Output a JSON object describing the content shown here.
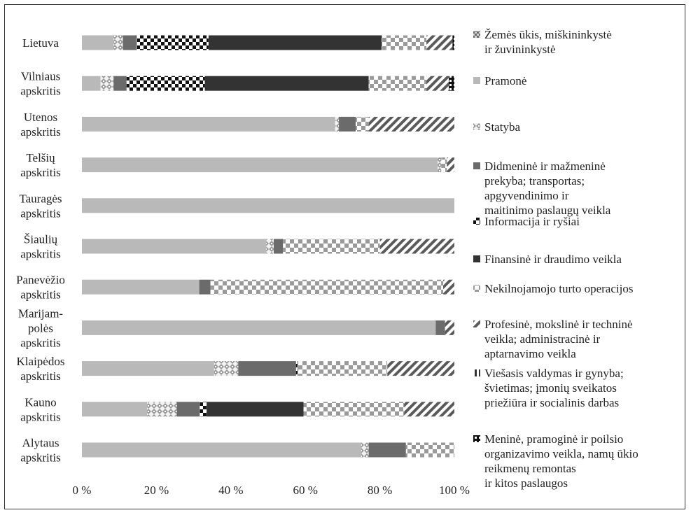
{
  "chart_data": {
    "type": "bar",
    "orientation": "horizontal",
    "stacked": true,
    "percent_stacked": true,
    "categories": [
      "Lietuva",
      "Vilniaus apskritis",
      "Utenos apskritis",
      "Telšių apskritis",
      "Tauragės apskritis",
      "Šiaulių apskritis",
      "Panevėžio apskritis",
      "Marijam-polės apskritis",
      "Klaipėdos apskritis",
      "Kauno apskritis",
      "Alytaus apskritis"
    ],
    "category_lines": [
      [
        "Lietuva"
      ],
      [
        "Vilniaus",
        "apskritis"
      ],
      [
        "Utenos",
        "apskritis"
      ],
      [
        "Telšių",
        "apskritis"
      ],
      [
        "Tauragės",
        "apskritis"
      ],
      [
        "Šiaulių",
        "apskritis"
      ],
      [
        "Panevėžio",
        "apskritis"
      ],
      [
        "Marijam-",
        "polės",
        "apskritis"
      ],
      [
        "Klaipėdos",
        "apskritis"
      ],
      [
        "Kauno",
        "apskritis"
      ],
      [
        "Alytaus",
        "apskritis"
      ]
    ],
    "series": [
      {
        "name": "Žemės ūkis, miškininkystė ir žuvininkystė",
        "name_lines": [
          "Žemės ūkis, miškininkystė",
          "ir žuvininkystė"
        ],
        "pattern": "checker-dark",
        "values": [
          0,
          0,
          0,
          0,
          0,
          0,
          0,
          0,
          0,
          0,
          0
        ]
      },
      {
        "name": "Pramonė",
        "name_lines": [
          "Pramonė"
        ],
        "pattern": "solid-light",
        "values": [
          8.5,
          5,
          68,
          95.5,
          100,
          49.5,
          31.5,
          95,
          35.5,
          17.5,
          75
        ]
      },
      {
        "name": "Statyba",
        "name_lines": [
          "Statyba"
        ],
        "pattern": "diamond",
        "values": [
          2.5,
          3.5,
          1,
          1,
          0,
          2,
          0,
          0,
          6.5,
          8,
          2
        ]
      },
      {
        "name": "Didmeninė ir mažmeninė prekyba; transportas; apgyvendinimo ir maitinimo paslaugų veikla",
        "name_lines": [
          "Didmeninė ir mažmeninė",
          "prekyba; transportas;",
          "apgyvendinimo ir",
          "maitinimo paslaugų veikla"
        ],
        "pattern": "solid-mid",
        "values": [
          3.5,
          3.5,
          4.5,
          0,
          0,
          2.5,
          3,
          2.5,
          15.5,
          6,
          10
        ]
      },
      {
        "name": "Informacija ir ryšiai",
        "name_lines": [
          "Informacija ir ryšiai"
        ],
        "pattern": "big-checker",
        "values": [
          19.5,
          21,
          0,
          0,
          0,
          0,
          0,
          0,
          0.5,
          2,
          0
        ]
      },
      {
        "name": "Finansinė ir draudimo veikla",
        "name_lines": [
          "Finansinė ir draudimo veikla"
        ],
        "pattern": "solid-dark",
        "values": [
          46.5,
          44,
          0,
          0,
          0,
          0,
          0,
          0,
          0,
          26,
          0
        ]
      },
      {
        "name": "Nekilnojamojo turto operacijos",
        "name_lines": [
          "Nekilnojamojo turto operacijos"
        ],
        "pattern": "checker-light",
        "values": [
          12,
          15.5,
          3.5,
          1.5,
          0,
          26,
          62.5,
          0,
          24,
          27,
          13
        ]
      },
      {
        "name": "Profesinė, mokslinė ir techninė veikla; administracinė ir aptarnavimo veikla",
        "name_lines": [
          "Profesinė, mokslinė ir techninė",
          "veikla; administracinė ir",
          "aptarnavimo veikla"
        ],
        "pattern": "diagonal",
        "values": [
          7,
          6,
          23,
          2,
          0,
          20,
          3,
          2.5,
          18,
          13.5,
          0
        ]
      },
      {
        "name": "Viešasis valdymas ir gynyba; švietimas; įmonių sveikatos priežiūra ir socialinis darbas",
        "name_lines": [
          "Viešasis valdymas ir gynyba;",
          "švietimas; įmonių sveikatos",
          "priežiūra ir socialinis darbas"
        ],
        "pattern": "vertical",
        "values": [
          0,
          0,
          0,
          0,
          0,
          0,
          0,
          0,
          0,
          0,
          0
        ]
      },
      {
        "name": "Meninė, pramoginė ir poilsio organizavimo veikla, namų ūkio reikmenų remontas ir kitos paslaugos",
        "name_lines": [
          "Meninė, pramoginė ir poilsio",
          "organizavimo veikla, namų ūkio",
          "reikmenų remontas",
          "ir kitos paslaugos"
        ],
        "pattern": "black-checker",
        "values": [
          0.5,
          1.5,
          0,
          0,
          0,
          0,
          0,
          0,
          0,
          0,
          0
        ]
      }
    ],
    "x_ticks": [
      "0 %",
      "20 %",
      "40 %",
      "60 %",
      "80 %",
      "100 %"
    ],
    "xlim": [
      0,
      100
    ],
    "grid": false,
    "legend_placement": "right",
    "title": "",
    "xlabel": "",
    "ylabel": ""
  }
}
